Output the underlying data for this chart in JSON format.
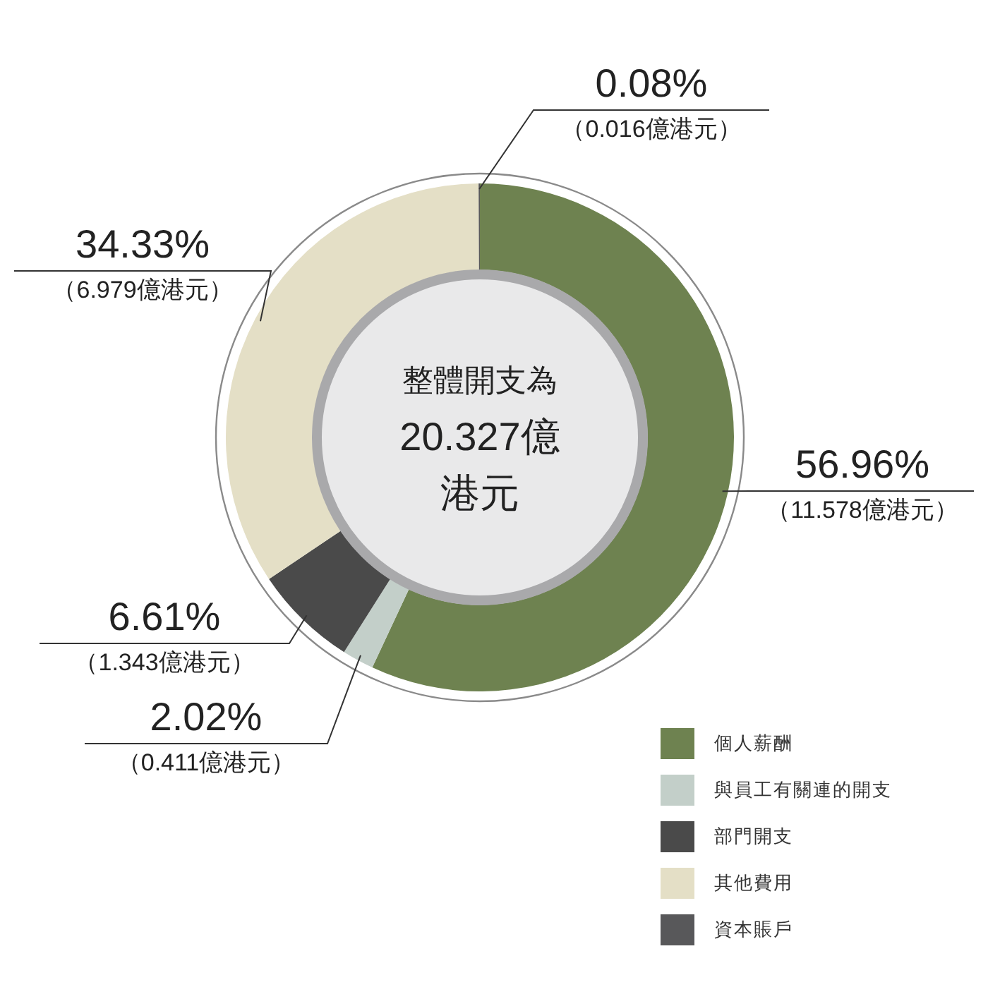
{
  "chart_data": {
    "type": "donut",
    "categories": [
      "個人薪酬",
      "與員工有關連的開支",
      "部門開支",
      "其他費用",
      "資本賬戶"
    ],
    "values": [
      56.96,
      2.02,
      6.61,
      34.33,
      0.08
    ],
    "colors": [
      "#6e8250",
      "#c3cfc9",
      "#4a4a4a",
      "#e4dfc6",
      "#58585a"
    ],
    "value_labels": [
      "56.96%\n（11.578億港元）",
      "2.02%\n（0.411億港元）",
      "6.61%\n（1.343億港元）",
      "34.33%\n（6.979億港元）",
      "0.08%\n（0.016億港元）"
    ],
    "annotations": [
      "整體開支為",
      "20.327億",
      "港元"
    ],
    "legend": "bottom right"
  }
}
